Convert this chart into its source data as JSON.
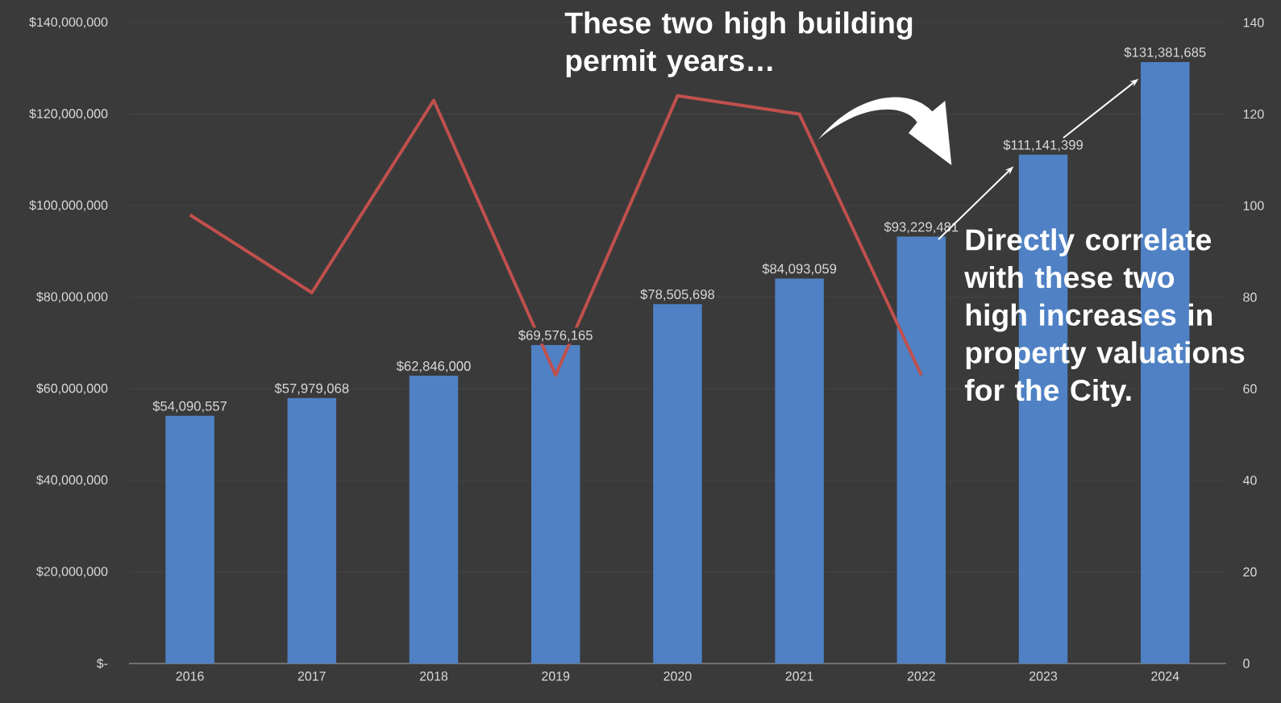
{
  "chart_data": {
    "type": "bar",
    "categories": [
      "2016",
      "2017",
      "2018",
      "2019",
      "2020",
      "2021",
      "2022",
      "2023",
      "2024"
    ],
    "series": [
      {
        "type": "bar",
        "color": "#4f81c4",
        "values": [
          54090557,
          57979068,
          62846000,
          69576165,
          78505698,
          84093059,
          93229481,
          111141399,
          131381685
        ],
        "value_labels": [
          "$54,090,557",
          "$57,979,068",
          "$62,846,000",
          "$69,576,165",
          "$78,505,698",
          "$84,093,059",
          "$93,229,481",
          "$111,141,399",
          "$131,381,685"
        ]
      },
      {
        "type": "line",
        "axis": "y2",
        "color": "#c0504d",
        "values": [
          98,
          81,
          123,
          63,
          124,
          120,
          63,
          null,
          null
        ]
      }
    ],
    "ylim": [
      0,
      140000000
    ],
    "yticks": [
      {
        "value": 0,
        "label": "$-"
      },
      {
        "value": 20000000,
        "label": "$20,000,000"
      },
      {
        "value": 40000000,
        "label": "$40,000,000"
      },
      {
        "value": 60000000,
        "label": "$60,000,000"
      },
      {
        "value": 80000000,
        "label": "$80,000,000"
      },
      {
        "value": 100000000,
        "label": "$100,000,000"
      },
      {
        "value": 120000000,
        "label": "$120,000,000"
      },
      {
        "value": 140000000,
        "label": "$140,000,000"
      }
    ],
    "y2lim": [
      0,
      140
    ],
    "y2ticks": [
      0,
      20,
      40,
      60,
      80,
      100,
      120,
      140
    ],
    "grid": "y",
    "marker": "none",
    "annotations": [
      "These two high building permit years…",
      "Directly correlate with these two high increases in property valuations for the City."
    ]
  }
}
